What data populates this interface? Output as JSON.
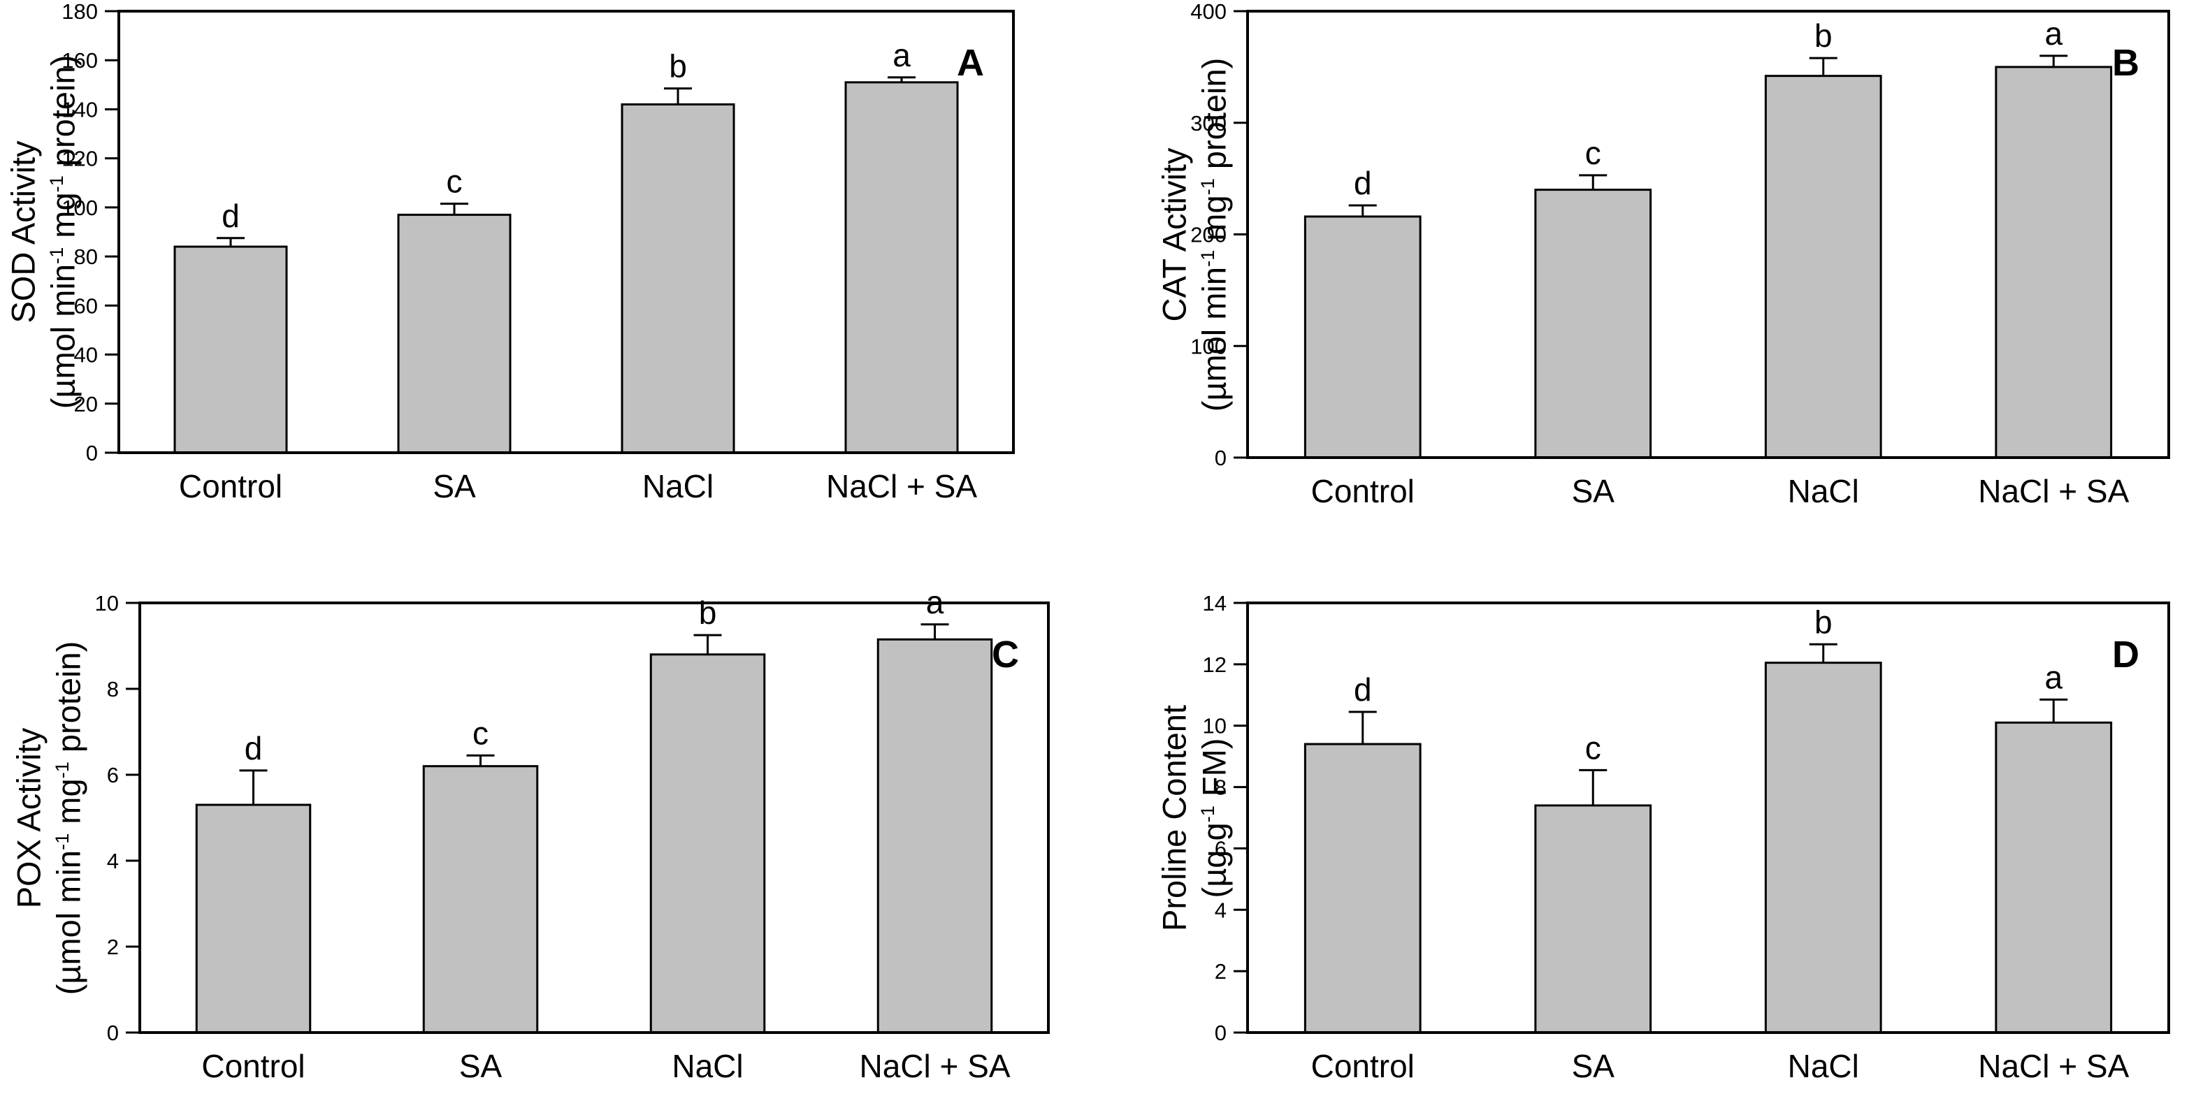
{
  "figure": {
    "background": "#ffffff",
    "text_color": "#000000",
    "frame_color": "#000000",
    "bar_fill": "#c1c1c1",
    "bar_edge": "#000000",
    "categories": [
      "Control",
      "SA",
      "NaCl",
      "NaCl + SA"
    ]
  },
  "chart_data": [
    {
      "panel_label": "A",
      "type": "bar",
      "ylabel": "SOD Activity",
      "ylabel_unit": "(µmol min⁻¹ mg⁻¹ protein)",
      "ylabel_unit_segments": [
        {
          "text": "(µmol min"
        },
        {
          "text": "-1",
          "sup": true
        },
        {
          "text": " mg"
        },
        {
          "text": "-1",
          "sup": true
        },
        {
          "text": " protein)"
        }
      ],
      "categories": [
        "Control",
        "SA",
        "NaCl",
        "NaCl + SA"
      ],
      "values": [
        84,
        97,
        142,
        151
      ],
      "errors": [
        3.5,
        4.5,
        6.5,
        2
      ],
      "sig_letters": [
        "d",
        "c",
        "b",
        "a"
      ],
      "ylim": [
        0,
        180
      ],
      "ytick_step": 20,
      "yticks": [
        0,
        20,
        40,
        60,
        80,
        100,
        120,
        140,
        160,
        180
      ],
      "grid": false,
      "legend": false
    },
    {
      "panel_label": "B",
      "type": "bar",
      "ylabel": "CAT Activity",
      "ylabel_unit": "(µmol min⁻¹ mg⁻¹ protein)",
      "ylabel_unit_segments": [
        {
          "text": "(µmol min"
        },
        {
          "text": "-1",
          "sup": true
        },
        {
          "text": " mg"
        },
        {
          "text": "-1",
          "sup": true
        },
        {
          "text": " protein)"
        }
      ],
      "categories": [
        "Control",
        "SA",
        "NaCl",
        "NaCl + SA"
      ],
      "values": [
        216,
        240,
        342,
        350
      ],
      "errors": [
        10,
        13,
        16,
        10
      ],
      "sig_letters": [
        "d",
        "c",
        "b",
        "a"
      ],
      "ylim": [
        0,
        400
      ],
      "ytick_step": 100,
      "yticks": [
        0,
        100,
        200,
        300,
        400
      ],
      "grid": false,
      "legend": false
    },
    {
      "panel_label": "C",
      "type": "bar",
      "ylabel": "POX Activity",
      "ylabel_unit": "(µmol min⁻¹ mg⁻¹ protein)",
      "ylabel_unit_segments": [
        {
          "text": "(µmol min"
        },
        {
          "text": "-1",
          "sup": true
        },
        {
          "text": " mg"
        },
        {
          "text": "-1",
          "sup": true
        },
        {
          "text": " protein)"
        }
      ],
      "categories": [
        "Control",
        "SA",
        "NaCl",
        "NaCl + SA"
      ],
      "values": [
        5.3,
        6.2,
        8.8,
        9.15
      ],
      "errors": [
        0.8,
        0.25,
        0.45,
        0.35
      ],
      "sig_letters": [
        "d",
        "c",
        "b",
        "a"
      ],
      "ylim": [
        0,
        10
      ],
      "ytick_step": 2,
      "yticks": [
        0,
        2,
        4,
        6,
        8,
        10
      ],
      "grid": false,
      "legend": false
    },
    {
      "panel_label": "D",
      "type": "bar",
      "ylabel": "Proline Content",
      "ylabel_unit": "(µg g⁻¹ FM)",
      "ylabel_unit_segments": [
        {
          "text": "(µg g"
        },
        {
          "text": "-1",
          "sup": true
        },
        {
          "text": " FM)"
        }
      ],
      "categories": [
        "Control",
        "SA",
        "NaCl",
        "NaCl + SA"
      ],
      "values": [
        9.4,
        7.4,
        12.05,
        10.1
      ],
      "errors": [
        1.05,
        1.15,
        0.6,
        0.75
      ],
      "sig_letters": [
        "d",
        "c",
        "b",
        "a"
      ],
      "ylim": [
        0,
        14
      ],
      "ytick_step": 2,
      "yticks": [
        0,
        2,
        4,
        6,
        8,
        10,
        12,
        14
      ],
      "grid": false,
      "legend": false
    }
  ]
}
